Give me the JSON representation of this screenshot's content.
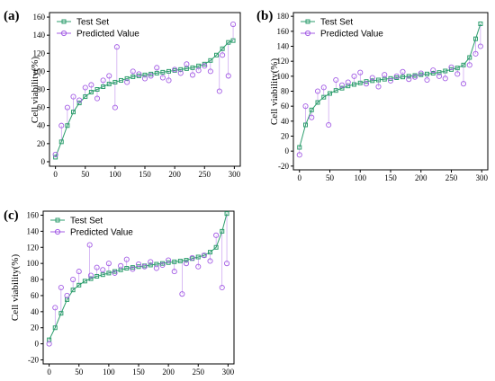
{
  "chart_data": [
    {
      "type": "scatter",
      "panel_label": "(a)",
      "ylabel": "Cell viability(%)",
      "xlabel": "",
      "xlim": [
        -10,
        310
      ],
      "ylim": [
        -5,
        165
      ],
      "xticks": [
        0,
        50,
        100,
        150,
        200,
        250,
        300
      ],
      "yticks": [
        0,
        20,
        40,
        60,
        80,
        100,
        120,
        140,
        160
      ],
      "legend_position": "top-left",
      "series": [
        {
          "name": "Test Set",
          "color": "#2e9e6e",
          "marker": "square",
          "values": [
            5,
            22,
            40,
            55,
            65,
            72,
            77,
            80,
            83,
            86,
            88,
            90,
            92,
            94,
            95,
            96,
            97,
            98,
            99,
            100,
            101,
            102,
            103,
            104,
            106,
            108,
            112,
            118,
            125,
            132,
            134
          ],
          "x": [
            0,
            10,
            20,
            30,
            40,
            50,
            60,
            70,
            80,
            90,
            100,
            110,
            120,
            130,
            140,
            150,
            160,
            170,
            180,
            190,
            200,
            210,
            220,
            230,
            240,
            250,
            260,
            270,
            280,
            290,
            298
          ]
        },
        {
          "name": "Predicted Value",
          "color": "#a45ee5",
          "marker": "circle",
          "values": [
            8,
            40,
            60,
            72,
            68,
            82,
            85,
            70,
            90,
            95,
            60,
            127,
            88,
            100,
            97,
            92,
            95,
            104,
            93,
            90,
            102,
            98,
            108,
            96,
            101,
            106,
            100,
            78,
            118,
            95,
            152
          ],
          "x": [
            0,
            10,
            20,
            30,
            40,
            50,
            60,
            70,
            80,
            90,
            100,
            103,
            120,
            130,
            140,
            150,
            160,
            170,
            180,
            190,
            200,
            210,
            220,
            230,
            240,
            250,
            260,
            275,
            280,
            290,
            298
          ]
        }
      ]
    },
    {
      "type": "scatter",
      "panel_label": "(b)",
      "ylabel": "Cell viability(%)",
      "xlabel": "",
      "xlim": [
        -10,
        310
      ],
      "ylim": [
        -25,
        185
      ],
      "xticks": [
        0,
        50,
        100,
        150,
        200,
        250,
        300
      ],
      "yticks": [
        -20,
        0,
        20,
        40,
        60,
        80,
        100,
        120,
        140,
        160,
        180
      ],
      "legend_position": "top-left",
      "series": [
        {
          "name": "Test Set",
          "color": "#2e9e6e",
          "marker": "square",
          "values": [
            5,
            35,
            55,
            65,
            72,
            77,
            81,
            84,
            87,
            89,
            91,
            93,
            94,
            95,
            96,
            97,
            98,
            99,
            100,
            101,
            102,
            103,
            104,
            105,
            107,
            109,
            111,
            115,
            125,
            150,
            170
          ],
          "x": [
            0,
            10,
            20,
            30,
            40,
            50,
            60,
            70,
            80,
            90,
            100,
            110,
            120,
            130,
            140,
            150,
            160,
            170,
            180,
            190,
            200,
            210,
            220,
            230,
            240,
            250,
            260,
            270,
            280,
            290,
            298
          ]
        },
        {
          "name": "Predicted Value",
          "color": "#a45ee5",
          "marker": "circle",
          "values": [
            -5,
            60,
            45,
            80,
            85,
            35,
            95,
            88,
            92,
            100,
            105,
            90,
            98,
            86,
            102,
            94,
            100,
            106,
            96,
            99,
            104,
            95,
            108,
            100,
            97,
            112,
            103,
            90,
            115,
            130,
            140
          ],
          "x": [
            0,
            10,
            20,
            30,
            40,
            48,
            60,
            70,
            80,
            90,
            100,
            110,
            120,
            130,
            140,
            150,
            160,
            170,
            180,
            190,
            200,
            210,
            220,
            230,
            240,
            250,
            260,
            270,
            280,
            290,
            298
          ]
        }
      ]
    },
    {
      "type": "scatter",
      "panel_label": "(c)",
      "ylabel": "Cell viability(%)",
      "xlabel": "",
      "xlim": [
        -10,
        310
      ],
      "ylim": [
        -25,
        165
      ],
      "xticks": [
        0,
        50,
        100,
        150,
        200,
        250,
        300
      ],
      "yticks": [
        -20,
        0,
        20,
        40,
        60,
        80,
        100,
        120,
        140,
        160
      ],
      "legend_position": "top-left",
      "series": [
        {
          "name": "Test Set",
          "color": "#2e9e6e",
          "marker": "square",
          "values": [
            5,
            20,
            38,
            55,
            67,
            73,
            78,
            81,
            84,
            86,
            88,
            90,
            92,
            94,
            95,
            96,
            97,
            98,
            99,
            100,
            101,
            102,
            103,
            104,
            106,
            108,
            110,
            114,
            120,
            140,
            162
          ],
          "x": [
            0,
            10,
            20,
            30,
            40,
            50,
            60,
            70,
            80,
            90,
            100,
            110,
            120,
            130,
            140,
            150,
            160,
            170,
            180,
            190,
            200,
            210,
            220,
            230,
            240,
            250,
            260,
            270,
            280,
            290,
            298
          ]
        },
        {
          "name": "Predicted Value",
          "color": "#a45ee5",
          "marker": "circle",
          "values": [
            0,
            45,
            70,
            60,
            80,
            90,
            123,
            85,
            95,
            92,
            100,
            88,
            97,
            105,
            93,
            99,
            96,
            102,
            94,
            98,
            104,
            90,
            62,
            100,
            107,
            96,
            110,
            103,
            135,
            70,
            100
          ],
          "x": [
            0,
            10,
            20,
            30,
            40,
            50,
            68,
            70,
            80,
            90,
            100,
            110,
            120,
            130,
            140,
            150,
            160,
            170,
            180,
            190,
            200,
            210,
            223,
            230,
            240,
            250,
            260,
            270,
            280,
            290,
            298
          ]
        }
      ]
    }
  ]
}
